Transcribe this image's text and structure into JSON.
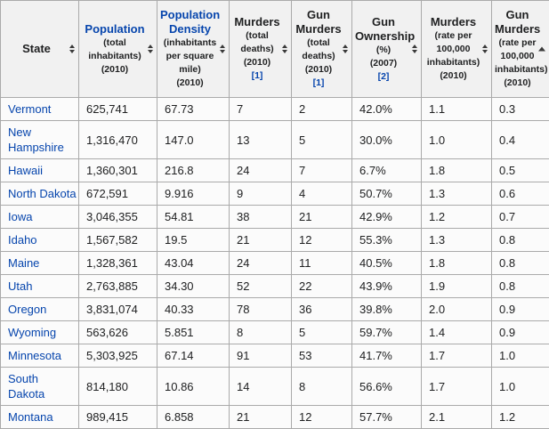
{
  "colors": {
    "link_blue": "#0645ad",
    "header_bg": "#f1f1f1",
    "border": "#aaaaaa",
    "row_bg": "#fbfbfb",
    "text": "#202122"
  },
  "table": {
    "header": {
      "columns": [
        {
          "id": "state",
          "label": "State",
          "is_link": false,
          "sublines": [],
          "ref": "",
          "sort": "unsorted",
          "sort_icon": "sort-both-icon"
        },
        {
          "id": "population",
          "label": "Population",
          "is_link": true,
          "sublines": [
            "(total",
            "inhabitants)",
            "(2010)"
          ],
          "ref": "",
          "sort": "unsorted",
          "sort_icon": "sort-both-icon"
        },
        {
          "id": "population-density",
          "label": "Population Density",
          "is_link": true,
          "sublines": [
            "(inhabitants",
            "per square",
            "mile)",
            "(2010)"
          ],
          "ref": "",
          "sort": "unsorted",
          "sort_icon": "sort-both-icon"
        },
        {
          "id": "murders-total",
          "label": "Murders",
          "is_link": false,
          "sublines": [
            "(total",
            "deaths)",
            "(2010)"
          ],
          "ref": "[1]",
          "sort": "unsorted",
          "sort_icon": "sort-both-icon"
        },
        {
          "id": "gun-murders-total",
          "label": "Gun Murders",
          "is_link": false,
          "sublines": [
            "(total",
            "deaths)",
            "(2010)"
          ],
          "ref": "[1]",
          "sort": "unsorted",
          "sort_icon": "sort-both-icon"
        },
        {
          "id": "gun-ownership",
          "label": "Gun Ownership",
          "is_link": false,
          "sublines": [
            "(%)",
            "(2007)"
          ],
          "ref": "[2]",
          "sort": "unsorted",
          "sort_icon": "sort-both-icon"
        },
        {
          "id": "murders-rate",
          "label": "Murders",
          "is_link": false,
          "sublines": [
            "(rate per",
            "100,000",
            "inhabitants)",
            "(2010)"
          ],
          "ref": "",
          "sort": "unsorted",
          "sort_icon": "sort-both-icon"
        },
        {
          "id": "gun-murders-rate",
          "label": "Gun Murders",
          "is_link": false,
          "sublines": [
            "(rate per",
            "100,000",
            "inhabitants)",
            "(2010)"
          ],
          "ref": "",
          "sort": "asc",
          "sort_icon": "sort-ascending-icon"
        }
      ]
    },
    "rows": [
      {
        "state": "Vermont",
        "cells": [
          "625,741",
          "67.73",
          "7",
          "2",
          "42.0%",
          "1.1",
          "0.3"
        ]
      },
      {
        "state": "New Hampshire",
        "cells": [
          "1,316,470",
          "147.0",
          "13",
          "5",
          "30.0%",
          "1.0",
          "0.4"
        ]
      },
      {
        "state": "Hawaii",
        "cells": [
          "1,360,301",
          "216.8",
          "24",
          "7",
          "6.7%",
          "1.8",
          "0.5"
        ]
      },
      {
        "state": "North Dakota",
        "cells": [
          "672,591",
          "9.916",
          "9",
          "4",
          "50.7%",
          "1.3",
          "0.6"
        ]
      },
      {
        "state": "Iowa",
        "cells": [
          "3,046,355",
          "54.81",
          "38",
          "21",
          "42.9%",
          "1.2",
          "0.7"
        ]
      },
      {
        "state": "Idaho",
        "cells": [
          "1,567,582",
          "19.5",
          "21",
          "12",
          "55.3%",
          "1.3",
          "0.8"
        ]
      },
      {
        "state": "Maine",
        "cells": [
          "1,328,361",
          "43.04",
          "24",
          "11",
          "40.5%",
          "1.8",
          "0.8"
        ]
      },
      {
        "state": "Utah",
        "cells": [
          "2,763,885",
          "34.30",
          "52",
          "22",
          "43.9%",
          "1.9",
          "0.8"
        ]
      },
      {
        "state": "Oregon",
        "cells": [
          "3,831,074",
          "40.33",
          "78",
          "36",
          "39.8%",
          "2.0",
          "0.9"
        ]
      },
      {
        "state": "Wyoming",
        "cells": [
          "563,626",
          "5.851",
          "8",
          "5",
          "59.7%",
          "1.4",
          "0.9"
        ]
      },
      {
        "state": "Minnesota",
        "cells": [
          "5,303,925",
          "67.14",
          "91",
          "53",
          "41.7%",
          "1.7",
          "1.0"
        ]
      },
      {
        "state": "South Dakota",
        "cells": [
          "814,180",
          "10.86",
          "14",
          "8",
          "56.6%",
          "1.7",
          "1.0"
        ]
      },
      {
        "state": "Montana",
        "cells": [
          "989,415",
          "6.858",
          "21",
          "12",
          "57.7%",
          "2.1",
          "1.2"
        ]
      }
    ]
  }
}
